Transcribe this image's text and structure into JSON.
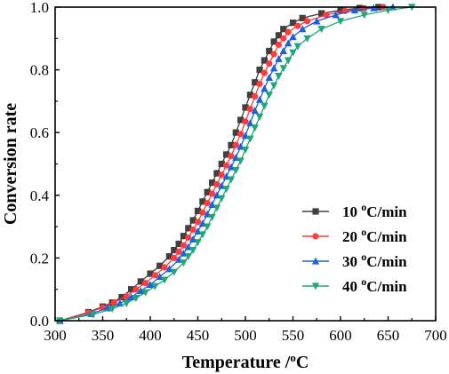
{
  "chart_data": {
    "type": "line",
    "xlabel": "Temperature /",
    "xlabel_unit_sup": "o",
    "xlabel_unit": "C",
    "ylabel": "Conversion rate",
    "xlim": [
      300,
      700
    ],
    "ylim": [
      0,
      1.0
    ],
    "xticks": [
      "300",
      "350",
      "400",
      "450",
      "500",
      "550",
      "600",
      "650",
      "700"
    ],
    "yticks": [
      "0.0",
      "0.2",
      "0.4",
      "0.6",
      "0.8",
      "1.0"
    ],
    "grid": false,
    "legend_position": "lower-right",
    "series": [
      {
        "name_prefix": "10 ",
        "name_sup": "o",
        "name_suffix": "C/min",
        "color": "#404040",
        "marker": "square",
        "x": [
          305,
          335,
          350,
          360,
          370,
          380,
          390,
          400,
          410,
          420,
          425,
          430,
          435,
          440,
          445,
          450,
          455,
          460,
          465,
          470,
          475,
          480,
          485,
          490,
          495,
          500,
          505,
          510,
          515,
          520,
          525,
          530,
          535,
          540,
          550,
          560,
          580,
          600,
          620,
          640
        ],
        "y": [
          0.0,
          0.027,
          0.045,
          0.058,
          0.075,
          0.1,
          0.125,
          0.15,
          0.175,
          0.205,
          0.225,
          0.245,
          0.27,
          0.295,
          0.32,
          0.35,
          0.38,
          0.41,
          0.44,
          0.47,
          0.5,
          0.53,
          0.56,
          0.6,
          0.64,
          0.68,
          0.72,
          0.76,
          0.8,
          0.83,
          0.86,
          0.89,
          0.91,
          0.93,
          0.95,
          0.965,
          0.98,
          0.99,
          0.997,
          1.0
        ]
      },
      {
        "name_prefix": "20 ",
        "name_sup": "o",
        "name_suffix": "C/min",
        "color": "#ff3b3b",
        "marker": "circle",
        "x": [
          305,
          335,
          350,
          362,
          375,
          385,
          395,
          405,
          415,
          425,
          430,
          435,
          440,
          445,
          450,
          455,
          460,
          465,
          470,
          475,
          480,
          485,
          490,
          495,
          500,
          505,
          510,
          515,
          520,
          525,
          530,
          535,
          540,
          545,
          555,
          565,
          585,
          605,
          625,
          645
        ],
        "y": [
          0.0,
          0.025,
          0.042,
          0.058,
          0.078,
          0.1,
          0.12,
          0.145,
          0.17,
          0.2,
          0.22,
          0.24,
          0.265,
          0.29,
          0.315,
          0.345,
          0.375,
          0.405,
          0.435,
          0.465,
          0.495,
          0.525,
          0.56,
          0.595,
          0.635,
          0.675,
          0.715,
          0.755,
          0.79,
          0.82,
          0.85,
          0.88,
          0.9,
          0.92,
          0.94,
          0.955,
          0.975,
          0.988,
          0.996,
          1.0
        ]
      },
      {
        "name_prefix": "30 ",
        "name_sup": "o",
        "name_suffix": "C/min",
        "color": "#1f5fe0",
        "marker": "triangle-up",
        "x": [
          305,
          338,
          355,
          368,
          380,
          390,
          400,
          410,
          420,
          430,
          435,
          440,
          445,
          450,
          455,
          460,
          465,
          470,
          475,
          480,
          485,
          490,
          495,
          500,
          505,
          510,
          515,
          520,
          525,
          530,
          535,
          540,
          545,
          550,
          560,
          575,
          595,
          615,
          635,
          655
        ],
        "y": [
          0.0,
          0.022,
          0.04,
          0.055,
          0.075,
          0.095,
          0.115,
          0.14,
          0.165,
          0.195,
          0.215,
          0.235,
          0.26,
          0.285,
          0.31,
          0.34,
          0.37,
          0.4,
          0.43,
          0.46,
          0.49,
          0.52,
          0.555,
          0.59,
          0.63,
          0.67,
          0.705,
          0.74,
          0.775,
          0.805,
          0.835,
          0.86,
          0.885,
          0.905,
          0.93,
          0.955,
          0.975,
          0.99,
          0.997,
          1.0
        ]
      },
      {
        "name_prefix": "40 ",
        "name_sup": "o",
        "name_suffix": "C/min",
        "color": "#1ea77a",
        "marker": "triangle-down",
        "x": [
          305,
          340,
          360,
          375,
          385,
          395,
          405,
          415,
          425,
          435,
          440,
          445,
          450,
          455,
          460,
          465,
          470,
          475,
          480,
          485,
          490,
          495,
          500,
          505,
          510,
          515,
          520,
          525,
          530,
          535,
          540,
          545,
          550,
          555,
          565,
          580,
          600,
          625,
          650,
          675
        ],
        "y": [
          0.0,
          0.02,
          0.038,
          0.055,
          0.072,
          0.09,
          0.11,
          0.13,
          0.155,
          0.185,
          0.205,
          0.225,
          0.25,
          0.275,
          0.3,
          0.33,
          0.36,
          0.39,
          0.42,
          0.45,
          0.48,
          0.51,
          0.545,
          0.58,
          0.615,
          0.65,
          0.685,
          0.72,
          0.75,
          0.78,
          0.805,
          0.83,
          0.855,
          0.875,
          0.9,
          0.93,
          0.955,
          0.975,
          0.99,
          1.0
        ]
      }
    ]
  }
}
